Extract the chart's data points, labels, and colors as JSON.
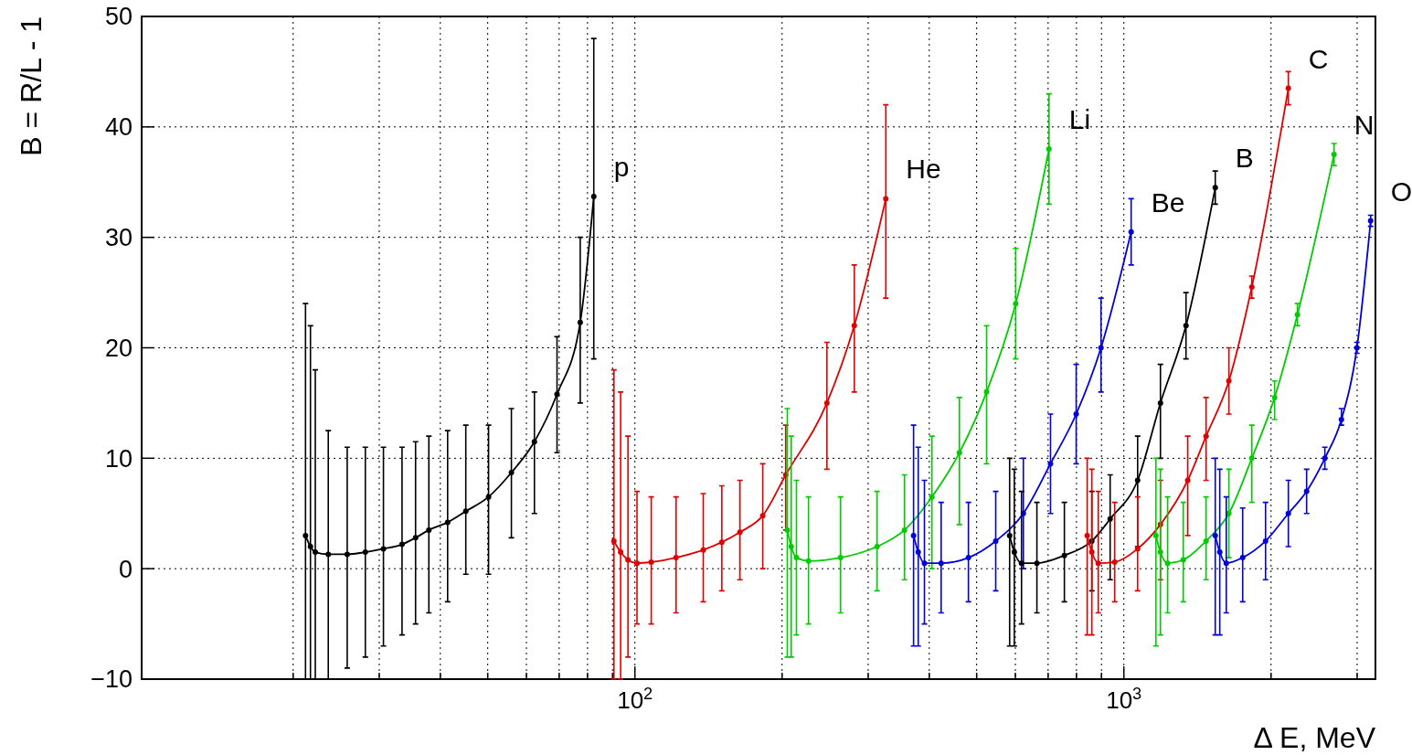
{
  "chart_data": {
    "type": "line",
    "xlabel": "Δ E, MeV",
    "ylabel": "B = R/L - 1",
    "log": "x",
    "grid": true,
    "marker": "circle",
    "line_style": "solid",
    "xlim": [
      9.8,
      3270
    ],
    "ylim": [
      -10,
      50
    ],
    "xticks": [
      {
        "value": 20,
        "label": null
      },
      {
        "value": 30,
        "label": null
      },
      {
        "value": 40,
        "label": null
      },
      {
        "value": 50,
        "label": null
      },
      {
        "value": 60,
        "label": null
      },
      {
        "value": 70,
        "label": null
      },
      {
        "value": 80,
        "label": null
      },
      {
        "value": 90,
        "label": null
      },
      {
        "value": 100,
        "label": "10$^{2}$"
      },
      {
        "value": 200,
        "label": null
      },
      {
        "value": 300,
        "label": null
      },
      {
        "value": 400,
        "label": null
      },
      {
        "value": 500,
        "label": null
      },
      {
        "value": 600,
        "label": null
      },
      {
        "value": 700,
        "label": null
      },
      {
        "value": 800,
        "label": null
      },
      {
        "value": 900,
        "label": null
      },
      {
        "value": 1000,
        "label": "10$^{3}$"
      },
      {
        "value": 2000,
        "label": null
      },
      {
        "value": 3000,
        "label": null
      }
    ],
    "yticks": [
      {
        "value": -10,
        "label": "−10"
      },
      0,
      10,
      20,
      30,
      40,
      50
    ],
    "series": [
      {
        "name": "p",
        "color": "#000000",
        "x": [
          21.2,
          21.7,
          22.2,
          23.6,
          25.8,
          28.1,
          30.6,
          33.4,
          35.6,
          37.9,
          41.4,
          45.1,
          50.2,
          55.9,
          62.3,
          69.3,
          77.3,
          82.4
        ],
        "values": [
          3,
          2,
          1.5,
          1.3,
          1.3,
          1.5,
          1.8,
          2.2,
          2.8,
          3.5,
          4.2,
          5.2,
          6.5,
          8.7,
          11.5,
          15.8,
          22.3,
          33.7
        ],
        "errors": [
          [
            -10,
            24
          ],
          [
            -10,
            22
          ],
          [
            -10,
            18
          ],
          [
            -10,
            12.5
          ],
          [
            -9,
            11
          ],
          [
            -8,
            11
          ],
          [
            -7,
            11
          ],
          [
            -6,
            11
          ],
          [
            -5,
            11.5
          ],
          [
            -4,
            12
          ],
          [
            -3,
            12.5
          ],
          [
            -0.5,
            13
          ],
          [
            -0.5,
            13
          ],
          [
            2.8,
            14.5
          ],
          [
            5,
            16
          ],
          [
            10.5,
            21
          ],
          [
            15,
            30
          ],
          [
            19,
            48
          ]
        ]
      },
      {
        "name": "He",
        "color": "#e00000",
        "x": [
          90.6,
          93.5,
          96.8,
          101,
          108,
          121.4,
          138,
          150.6,
          164,
          182.6,
          203.5,
          247,
          281,
          326
        ],
        "values": [
          2.5,
          1.5,
          0.8,
          0.5,
          0.6,
          1,
          1.7,
          2.4,
          3.3,
          4.8,
          8.5,
          15,
          22,
          33.5
        ],
        "errors": [
          [
            -10,
            18
          ],
          [
            -10,
            16
          ],
          [
            -8,
            12
          ],
          [
            -5,
            7
          ],
          [
            -5,
            6.5
          ],
          [
            -4,
            6.5
          ],
          [
            -3,
            6.8
          ],
          [
            -2,
            7.5
          ],
          [
            -1,
            8
          ],
          [
            0,
            9.5
          ],
          [
            3.5,
            13
          ],
          [
            9,
            20.5
          ],
          [
            16,
            27.5
          ],
          [
            24.5,
            42
          ]
        ]
      },
      {
        "name": "Li",
        "color": "#00cc00",
        "x": [
          205,
          208.8,
          214,
          226.5,
          263.4,
          312.8,
          356,
          405,
          461,
          524,
          601,
          703
        ],
        "values": [
          3.5,
          2,
          1,
          0.7,
          1,
          2,
          3.5,
          6.5,
          10.5,
          16,
          24,
          38
        ],
        "errors": [
          [
            -8,
            14.5
          ],
          [
            -8,
            12
          ],
          [
            -6,
            8
          ],
          [
            -5,
            6.5
          ],
          [
            -4,
            6.5
          ],
          [
            -2,
            7
          ],
          [
            -1,
            8.5
          ],
          [
            0,
            12
          ],
          [
            4,
            15.5
          ],
          [
            9.5,
            22
          ],
          [
            19,
            29
          ],
          [
            33,
            43
          ]
        ]
      },
      {
        "name": "Be",
        "color": "#0000dd",
        "x": [
          371.5,
          379.7,
          391,
          423,
          481,
          547,
          623,
          708,
          799,
          898,
          1035
        ],
        "values": [
          3,
          1.5,
          0.5,
          0.5,
          1,
          2.5,
          5,
          9.5,
          14,
          20,
          30.5
        ],
        "errors": [
          [
            -7,
            13
          ],
          [
            -7,
            11
          ],
          [
            -5,
            8
          ],
          [
            -4,
            6
          ],
          [
            -3,
            6
          ],
          [
            -2,
            7
          ],
          [
            0,
            10
          ],
          [
            5,
            14
          ],
          [
            9.5,
            18.5
          ],
          [
            16,
            24.5
          ],
          [
            27.5,
            33.5
          ]
        ]
      },
      {
        "name": "B",
        "color": "#000000",
        "x": [
          584,
          597,
          617.6,
          664,
          755.7,
          860,
          937.5,
          1067,
          1188,
          1340,
          1538
        ],
        "values": [
          3,
          1.5,
          0.5,
          0.5,
          1.2,
          2.5,
          4.5,
          8,
          15,
          22,
          34.5
        ],
        "errors": [
          [
            -7,
            10
          ],
          [
            -7,
            9
          ],
          [
            -5,
            7
          ],
          [
            -4,
            6
          ],
          [
            -3,
            6
          ],
          [
            -2,
            7
          ],
          [
            -1,
            8.5
          ],
          [
            2,
            12
          ],
          [
            10,
            18.5
          ],
          [
            19,
            25
          ],
          [
            33,
            36
          ]
        ]
      },
      {
        "name": "C",
        "color": "#e00000",
        "x": [
          841.6,
          860,
          886.6,
          957.9,
          1067,
          1188,
          1351,
          1473,
          1640,
          1827,
          2170
        ],
        "values": [
          3,
          1.5,
          0.5,
          0.6,
          1.8,
          4,
          8,
          12,
          17,
          25.5,
          43.5
        ],
        "errors": [
          [
            -6,
            10
          ],
          [
            -6,
            9
          ],
          [
            -4,
            7
          ],
          [
            -3,
            6
          ],
          [
            -2,
            6.5
          ],
          [
            -1,
            8
          ],
          [
            3,
            12
          ],
          [
            8,
            15.5
          ],
          [
            14,
            20
          ],
          [
            24.5,
            26.5
          ],
          [
            42,
            45
          ]
        ]
      },
      {
        "name": "N",
        "color": "#00cc00",
        "x": [
          1163,
          1188,
          1229,
          1323,
          1473,
          1640,
          1827,
          2034,
          2265,
          2691
        ],
        "values": [
          3,
          1.5,
          0.5,
          0.8,
          2.5,
          5,
          10,
          15.5,
          23,
          37.5
        ],
        "errors": [
          [
            -7,
            10
          ],
          [
            -6,
            9
          ],
          [
            -4,
            6.5
          ],
          [
            -3,
            6
          ],
          [
            -1,
            6.5
          ],
          [
            1,
            9
          ],
          [
            6,
            13
          ],
          [
            13.5,
            17
          ],
          [
            22,
            24
          ],
          [
            36.5,
            38.5
          ]
        ]
      },
      {
        "name": "O",
        "color": "#0000dd",
        "x": [
          1538,
          1571,
          1620,
          1750,
          1949,
          2170,
          2365,
          2577,
          2786,
          2997,
          3197
        ],
        "values": [
          3,
          1.5,
          0.5,
          1,
          2.5,
          5,
          7,
          10,
          13.5,
          20,
          31.5
        ],
        "errors": [
          [
            -6,
            10
          ],
          [
            -6,
            9
          ],
          [
            -4,
            6.5
          ],
          [
            -3,
            5.5
          ],
          [
            -1,
            6
          ],
          [
            2,
            8
          ],
          [
            5,
            9
          ],
          [
            9,
            11
          ],
          [
            13,
            14.5
          ],
          [
            19.5,
            20.5
          ],
          [
            31,
            32
          ]
        ]
      }
    ]
  }
}
